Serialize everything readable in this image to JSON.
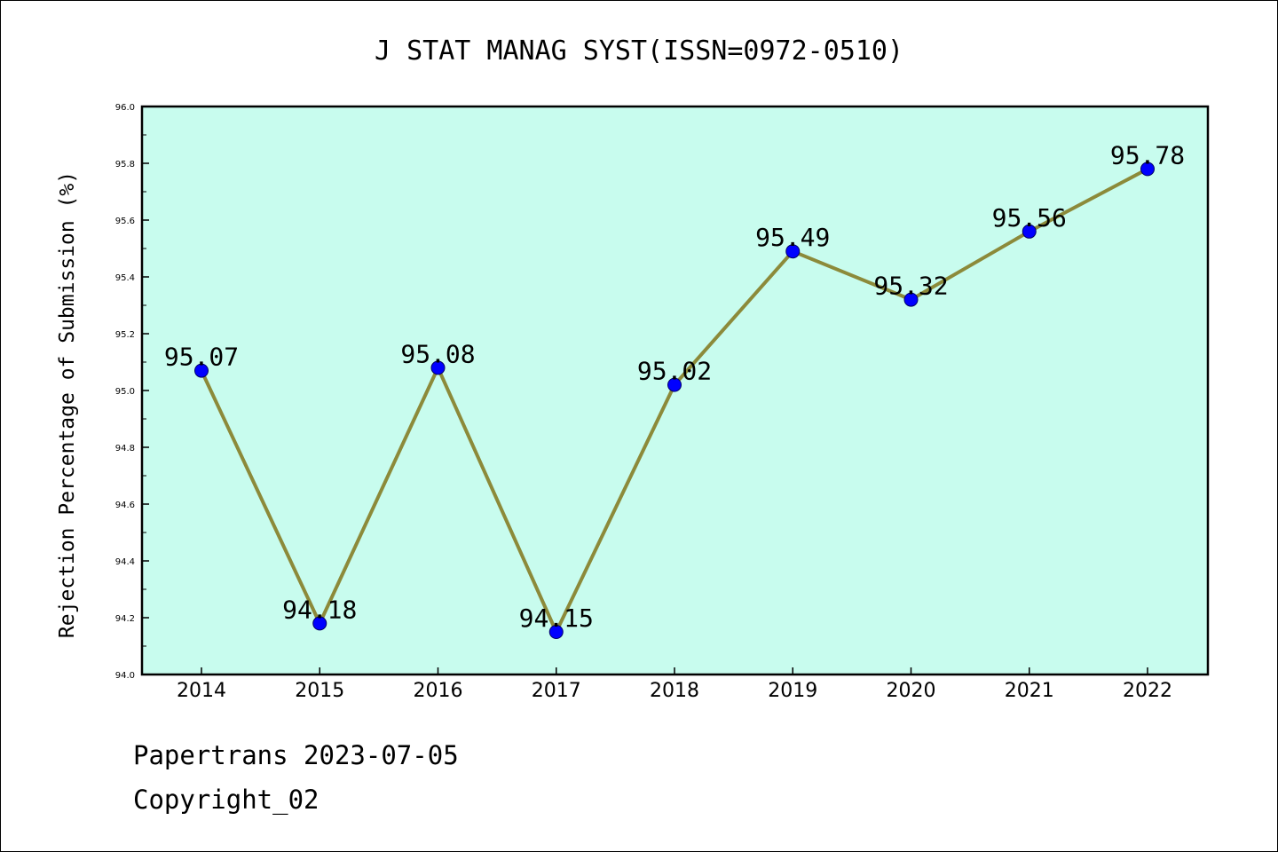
{
  "chart_data": {
    "type": "line",
    "title": "J STAT MANAG SYST(ISSN=0972-0510)",
    "ylabel": "Rejection Percentage of Submission (%)",
    "xlabel": "",
    "categories": [
      "2014",
      "2015",
      "2016",
      "2017",
      "2018",
      "2019",
      "2020",
      "2021",
      "2022"
    ],
    "values": [
      95.07,
      94.18,
      95.08,
      94.15,
      95.02,
      95.49,
      95.32,
      95.56,
      95.78
    ],
    "data_labels": [
      "95.07",
      "94.18",
      "95.08",
      "94.15",
      "95.02",
      "95.49",
      "95.32",
      "95.56",
      "95.78"
    ],
    "ylim": [
      94.0,
      96.0
    ],
    "yticks": [
      "94.0",
      "94.2",
      "94.4",
      "94.6",
      "94.8",
      "95.0",
      "95.2",
      "95.4",
      "95.6",
      "95.8",
      "96.0"
    ],
    "grid": false,
    "colors": {
      "plot_background": "#c8fcee",
      "line": "#8c8a3a",
      "marker": "#0000ff",
      "marker_edge": "#000066"
    }
  },
  "footer": {
    "line1": "Papertrans 2023-07-05",
    "line2": "Copyright_02"
  }
}
